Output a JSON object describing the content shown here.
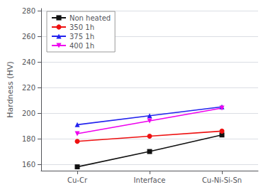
{
  "chart_data": {
    "type": "line",
    "categories": [
      "Cu-Cr",
      "Interface",
      "Cu-Ni-Si-Sn"
    ],
    "series": [
      {
        "name": "Non heated",
        "color": "#111111",
        "marker": "square",
        "line_style": "solid",
        "values": [
          158,
          170,
          183
        ]
      },
      {
        "name": "350 1h",
        "color": "#ee1111",
        "marker": "circle",
        "line_style": "solid",
        "values": [
          178,
          182,
          186
        ]
      },
      {
        "name": "375 1h",
        "color": "#2222ee",
        "marker": "triangle-up",
        "line_style": "solid",
        "values": [
          191,
          198,
          205
        ]
      },
      {
        "name": "400 1h",
        "color": "#ee00ee",
        "marker": "triangle-down",
        "line_style": "solid",
        "values": [
          184,
          194,
          204
        ]
      }
    ],
    "ylabel": "Hardness (HV)",
    "ylim": [
      155,
      282
    ],
    "yticks": [
      160,
      180,
      200,
      220,
      240,
      260,
      280
    ],
    "grid": true,
    "legend": "upper left"
  }
}
